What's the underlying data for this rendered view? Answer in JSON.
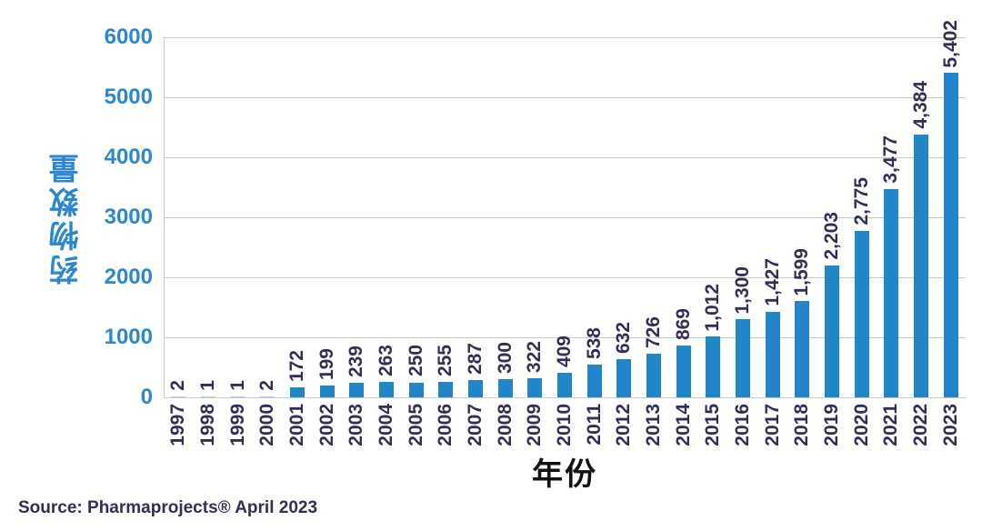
{
  "chart_data": {
    "type": "bar",
    "title": "",
    "xlabel": "年份",
    "ylabel": "药物数量",
    "categories": [
      "1997",
      "1998",
      "1999",
      "2000",
      "2001",
      "2002",
      "2003",
      "2004",
      "2005",
      "2006",
      "2007",
      "2008",
      "2009",
      "2010",
      "2011",
      "2012",
      "2013",
      "2014",
      "2015",
      "2016",
      "2017",
      "2018",
      "2019",
      "2020",
      "2021",
      "2022",
      "2023"
    ],
    "values": [
      2,
      1,
      1,
      2,
      172,
      199,
      239,
      263,
      250,
      255,
      287,
      300,
      322,
      409,
      538,
      632,
      726,
      869,
      1012,
      1300,
      1427,
      1599,
      2203,
      2775,
      3477,
      4384,
      5402
    ],
    "value_labels": [
      "2",
      "1",
      "1",
      "2",
      "172",
      "199",
      "239",
      "263",
      "250",
      "255",
      "287",
      "300",
      "322",
      "409",
      "538",
      "632",
      "726",
      "869",
      "1,012",
      "1,300",
      "1,427",
      "1,599",
      "2,203",
      "2,775",
      "3,477",
      "4,384",
      "5,402"
    ],
    "yticks": [
      0,
      1000,
      2000,
      3000,
      4000,
      5000,
      6000
    ],
    "ylim": [
      0,
      6000
    ],
    "grid": true,
    "legend": "none",
    "colors": {
      "bar": "#2186c8",
      "tiny_bar": "#aed3ec",
      "axis_text_blue": "#2b87d2",
      "data_label": "#322f56",
      "gridline": "#c9c9c9"
    }
  },
  "footer": {
    "source": "Source: Pharmaprojects® April 2023"
  }
}
